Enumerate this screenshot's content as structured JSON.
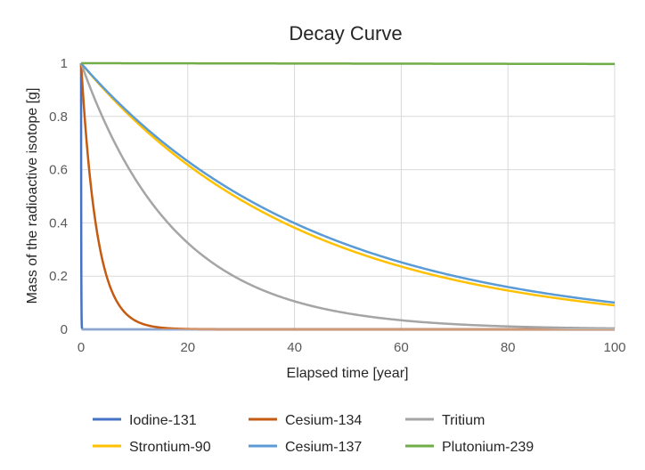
{
  "chart_data": {
    "type": "line",
    "title": "Decay Curve",
    "xlabel": "Elapsed time [year]",
    "ylabel": "Mass of the radioactive isotope [g]",
    "xlim": [
      0,
      100
    ],
    "ylim": [
      0,
      1
    ],
    "xticks": [
      0,
      20,
      40,
      60,
      80,
      100
    ],
    "yticks": [
      0,
      0.2,
      0.4,
      0.6,
      0.8,
      1
    ],
    "xtick_labels": [
      "0",
      "20",
      "40",
      "60",
      "80",
      "100"
    ],
    "ytick_labels": [
      "0",
      "0.2",
      "0.4",
      "0.6",
      "0.8",
      "1"
    ],
    "grid": true,
    "legend_position": "bottom",
    "initial_mass": 1,
    "series": [
      {
        "name": "Iodine-131",
        "half_life_years": 0.022,
        "color": "#4472C4"
      },
      {
        "name": "Cesium-134",
        "half_life_years": 2.06,
        "color": "#C55A11"
      },
      {
        "name": "Tritium",
        "half_life_years": 12.32,
        "color": "#A5A5A5"
      },
      {
        "name": "Strontium-90",
        "half_life_years": 28.8,
        "color": "#FFC000"
      },
      {
        "name": "Cesium-137",
        "half_life_years": 30.17,
        "color": "#5B9BD5"
      },
      {
        "name": "Plutonium-239",
        "half_life_years": 24110,
        "color": "#70AD47"
      }
    ]
  }
}
